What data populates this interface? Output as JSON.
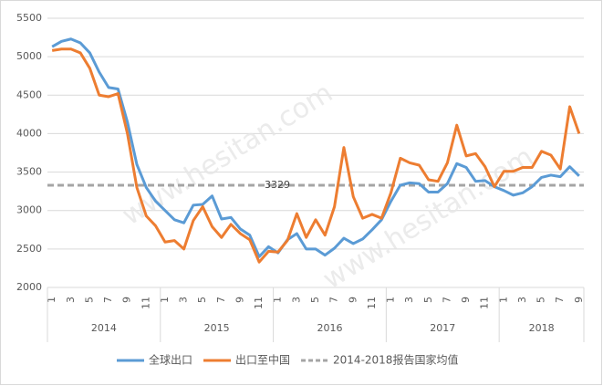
{
  "chart_data": {
    "type": "line",
    "categories": [
      "1",
      null,
      "3",
      null,
      "5",
      null,
      "7",
      null,
      "9",
      null,
      "11",
      null,
      "1",
      null,
      "3",
      null,
      "5",
      null,
      "7",
      null,
      "9",
      null,
      "11",
      null,
      "1",
      null,
      "3",
      null,
      "5",
      null,
      "7",
      null,
      "9",
      null,
      "11",
      null,
      "1",
      null,
      "3",
      null,
      "5",
      null,
      "7",
      null,
      "9",
      null,
      "11",
      null,
      "1",
      null,
      "3",
      null,
      "5",
      null,
      "7",
      null,
      "9"
    ],
    "groups": [
      "2014",
      "2015",
      "2016",
      "2017",
      "2018"
    ],
    "series": [
      {
        "name": "全球出口",
        "color": "#5b9bd5",
        "values": [
          5130,
          5200,
          5230,
          5180,
          5050,
          4800,
          4600,
          4580,
          4150,
          3600,
          3300,
          3120,
          3000,
          2880,
          2840,
          3070,
          3080,
          3190,
          2890,
          2910,
          2760,
          2680,
          2400,
          2530,
          2450,
          2620,
          2700,
          2500,
          2500,
          2420,
          2510,
          2640,
          2570,
          2630,
          2750,
          2880,
          3120,
          3330,
          3360,
          3350,
          3240,
          3240,
          3350,
          3610,
          3560,
          3380,
          3390,
          3310,
          3260,
          3200,
          3230,
          3310,
          3430,
          3460,
          3440,
          3570,
          3450
        ]
      },
      {
        "name": "出口至中国",
        "color": "#ed7d31",
        "values": [
          5080,
          5100,
          5100,
          5050,
          4850,
          4500,
          4480,
          4520,
          4000,
          3300,
          2930,
          2800,
          2590,
          2610,
          2500,
          2870,
          3050,
          2790,
          2650,
          2820,
          2700,
          2620,
          2330,
          2470,
          2460,
          2610,
          2960,
          2650,
          2880,
          2680,
          3050,
          3820,
          3180,
          2900,
          2950,
          2900,
          3230,
          3680,
          3620,
          3590,
          3400,
          3380,
          3620,
          4110,
          3710,
          3740,
          3570,
          3310,
          3510,
          3510,
          3560,
          3560,
          3770,
          3720,
          3540,
          4350,
          4000
        ]
      }
    ],
    "reference_line": {
      "name": "2014-2018报告国家均值",
      "value": 3329,
      "label": "3329",
      "color": "#a5a5a5"
    },
    "ylim": [
      2000,
      5500
    ],
    "yticks": [
      2000,
      2500,
      3000,
      3500,
      4000,
      4500,
      5000,
      5500
    ],
    "grid": true,
    "watermark": "www.hesitan.com"
  }
}
